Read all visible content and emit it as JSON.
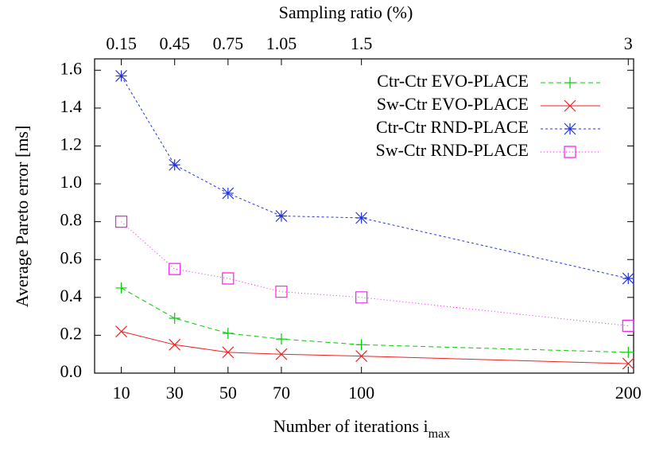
{
  "chart_data": {
    "type": "line",
    "xlabel": "Number of iterations i",
    "xlabel_subscript": "max",
    "ylabel": "Average Pareto error [ms]",
    "x2label": "Sampling ratio (%)",
    "x": [
      10,
      30,
      50,
      70,
      100,
      200
    ],
    "xlim": [
      0,
      202
    ],
    "xticks": [
      10,
      30,
      50,
      70,
      100,
      200
    ],
    "x2lim": [
      0,
      3.03
    ],
    "x2ticks": [
      0.15,
      0.45,
      0.75,
      1.05,
      1.5,
      3
    ],
    "ylim": [
      0,
      1.66
    ],
    "yticks": [
      {
        "value": 0,
        "label": "0.0"
      },
      0.2,
      0.4,
      0.6,
      0.8,
      {
        "value": 1,
        "label": "1.0"
      },
      1.2,
      1.4,
      1.6
    ],
    "grid": false,
    "legend": "top-right",
    "series": [
      {
        "name": "Ctr-Ctr EVO-PLACE",
        "color": "#00cc00",
        "marker": "plus",
        "dash": "6,4",
        "values": [
          0.45,
          0.29,
          0.21,
          0.18,
          0.15,
          0.11
        ]
      },
      {
        "name": "Sw-Ctr EVO-PLACE",
        "color": "#ee2222",
        "marker": "cross",
        "dash": "none",
        "values": [
          0.22,
          0.15,
          0.11,
          0.1,
          0.09,
          0.05
        ]
      },
      {
        "name": "Ctr-Ctr RND-PLACE",
        "color": "#2233dd",
        "marker": "star",
        "dash": "3,3",
        "values": [
          1.57,
          1.1,
          0.95,
          0.83,
          0.82,
          0.5
        ]
      },
      {
        "name": "Sw-Ctr RND-PLACE",
        "color": "#ee22ee",
        "marker": "square",
        "dash": "1,3",
        "values": [
          0.8,
          0.55,
          0.5,
          0.43,
          0.4,
          0.25
        ]
      }
    ]
  }
}
